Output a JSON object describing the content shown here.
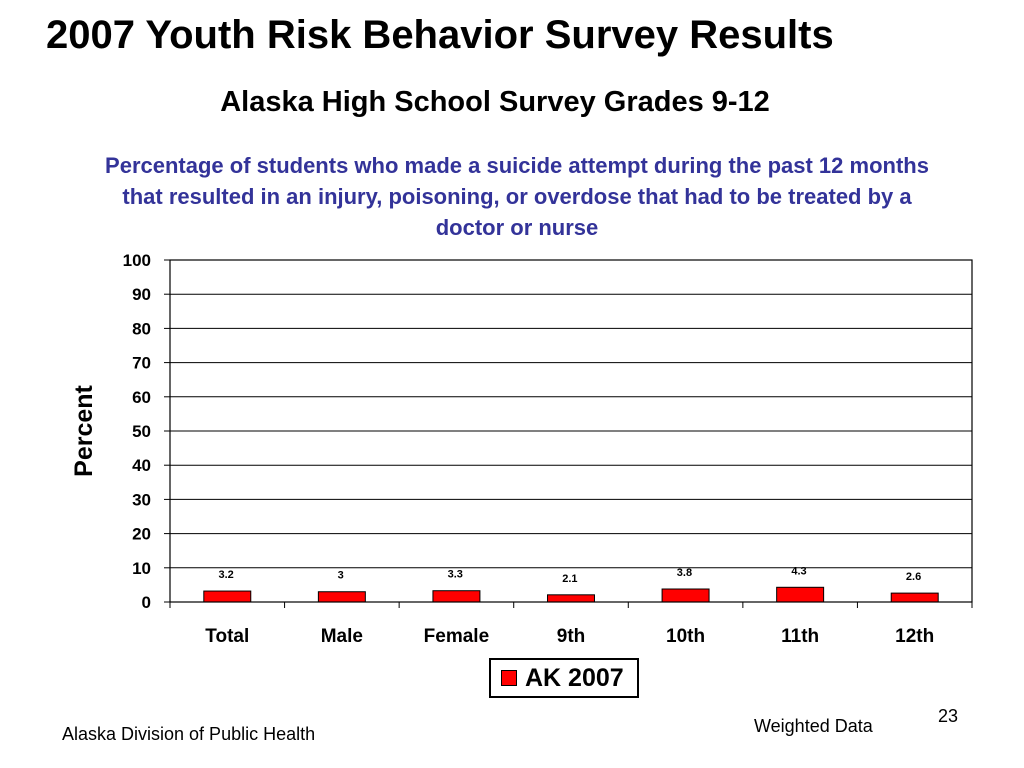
{
  "slide": {
    "title": "2007 Youth Risk Behavior Survey Results",
    "subtitle": "Alaska High School Survey Grades 9-12",
    "description": "Percentage of students who made a suicide attempt during the past 12 months that resulted in an injury, poisoning, or overdose that had to be treated by a doctor or nurse",
    "footer_left": "Alaska Division of Public Health",
    "footer_right": "Weighted Data",
    "page_number": "23"
  },
  "chart_data": {
    "type": "bar",
    "categories": [
      "Total",
      "Male",
      "Female",
      "9th",
      "10th",
      "11th",
      "12th"
    ],
    "series": [
      {
        "name": "AK 2007",
        "values": [
          3.2,
          3,
          3.3,
          2.1,
          3.8,
          4.3,
          2.6
        ],
        "color": "#ff0000"
      }
    ],
    "ylabel": "Percent",
    "ylim": [
      0,
      100
    ],
    "yticks": [
      0,
      10,
      20,
      30,
      40,
      50,
      60,
      70,
      80,
      90,
      100
    ],
    "grid": true,
    "legend": "bottom"
  }
}
